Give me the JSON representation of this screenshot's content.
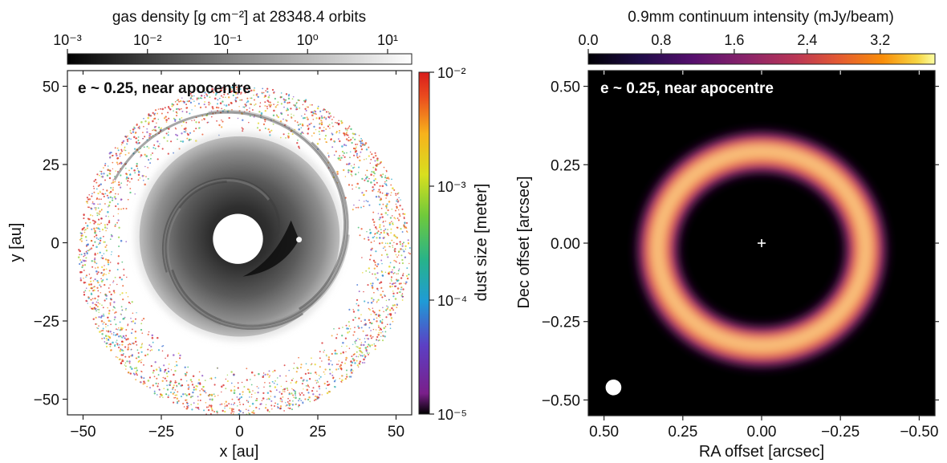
{
  "chart_data": [
    {
      "type": "scatter",
      "title": "",
      "panel_label": "e ~ 0.25, near apocentre",
      "xlabel": "x [au]",
      "ylabel": "y [au]",
      "xlim": [
        -55,
        55
      ],
      "ylim": [
        -55,
        55
      ],
      "xticks": [
        -50,
        -25,
        0,
        25,
        50
      ],
      "yticks": [
        -50,
        -25,
        0,
        25,
        50
      ],
      "x_ticklabels": [
        "−50",
        "−25",
        "0",
        "25",
        "50"
      ],
      "y_ticklabels": [
        "−50",
        "−25",
        "0",
        "25",
        "50"
      ],
      "gas_colorbar": {
        "label": "gas density [g cm⁻²] at 28348.4 orbits",
        "scale": "log",
        "range": [
          0.001,
          20
        ],
        "ticks": [
          0.001,
          0.01,
          0.1,
          1,
          10
        ],
        "ticklabels": [
          "10⁻³",
          "10⁻²",
          "10⁻¹",
          "10⁰",
          "10¹"
        ],
        "colormap": "greys"
      },
      "dust_colorbar": {
        "label": "dust size [meter]",
        "scale": "log",
        "range": [
          1e-05,
          0.01
        ],
        "ticks": [
          1e-05,
          0.0001,
          0.001,
          0.01
        ],
        "ticklabels": [
          "10⁻⁵",
          "10⁻⁴",
          "10⁻³",
          "10⁻²"
        ],
        "colormap": "spectral"
      },
      "gas_disc": {
        "inner_hole_radius": 8,
        "outer_radius": 32,
        "center": [
          0,
          2
        ]
      },
      "dust_ring": {
        "inner_radius": 34,
        "outer_radius": 53,
        "center": [
          0,
          -3
        ]
      },
      "planet_position": [
        19,
        1
      ]
    },
    {
      "type": "heatmap",
      "title": "",
      "panel_label": "e ~ 0.25, near apocentre",
      "xlabel": "RA offset [arcsec]",
      "ylabel": "Dec offset [arcsec]",
      "xlim": [
        0.55,
        -0.55
      ],
      "ylim": [
        -0.55,
        0.55
      ],
      "xticks": [
        0.5,
        0.25,
        0,
        -0.25,
        -0.5
      ],
      "yticks": [
        -0.5,
        -0.25,
        0,
        0.25,
        0.5
      ],
      "x_ticklabels": [
        "0.50",
        "0.25",
        "0.00",
        "−0.25",
        "−0.50"
      ],
      "y_ticklabels": [
        "−0.50",
        "−0.25",
        "0.00",
        "0.25",
        "0.50"
      ],
      "colorbar": {
        "label": "0.9mm continuum intensity (mJy/beam)",
        "scale": "linear",
        "range": [
          0,
          3.8
        ],
        "ticks": [
          0,
          0.8,
          1.6,
          2.4,
          3.2
        ],
        "ticklabels": [
          "0.0",
          "0.8",
          "1.6",
          "2.4",
          "3.2"
        ],
        "colormap": "inferno"
      },
      "ring": {
        "center": [
          0,
          -0.02
        ],
        "radius_ra": 0.33,
        "radius_dec": 0.31,
        "width": 0.1
      },
      "star_marker": [
        0,
        0
      ],
      "beam": {
        "center": [
          0.47,
          -0.46
        ],
        "radius": 0.025
      }
    }
  ]
}
